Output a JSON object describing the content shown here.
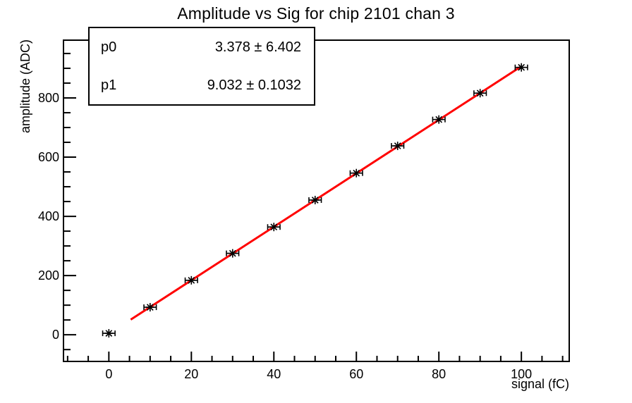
{
  "chart_data": {
    "type": "scatter",
    "title": "Amplitude vs Sig for chip 2101 chan 3",
    "xlabel": "signal (fC)",
    "ylabel": "amplitude (ADC)",
    "xlim": [
      -11,
      111.6
    ],
    "ylim": [
      -90,
      995
    ],
    "x_major_ticks": [
      0,
      20,
      40,
      60,
      80,
      100
    ],
    "x_minor_step": 5,
    "y_major_ticks": [
      0,
      200,
      400,
      600,
      800
    ],
    "y_minor_step": 50,
    "grid": false,
    "legend": "none",
    "series": [
      {
        "name": "amplitude-vs-signal-points",
        "marker": "asterisk",
        "color": "#000000",
        "x": [
          0,
          10,
          20,
          30,
          40,
          50,
          60,
          70,
          80,
          90,
          100
        ],
        "y": [
          5,
          93,
          184,
          275,
          364,
          455,
          546,
          638,
          727,
          816,
          903
        ],
        "xerr": 1.5
      }
    ],
    "fit": {
      "type": "linear",
      "color": "#ff0000",
      "p0": 3.378,
      "p1": 9.032,
      "x_start": 5.3,
      "x_end": 99.8
    }
  },
  "stats_box": {
    "rows": [
      {
        "name": "p0",
        "value": "3.378 ± 6.402"
      },
      {
        "name": "p1",
        "value": "9.032 ± 0.1032"
      }
    ]
  }
}
